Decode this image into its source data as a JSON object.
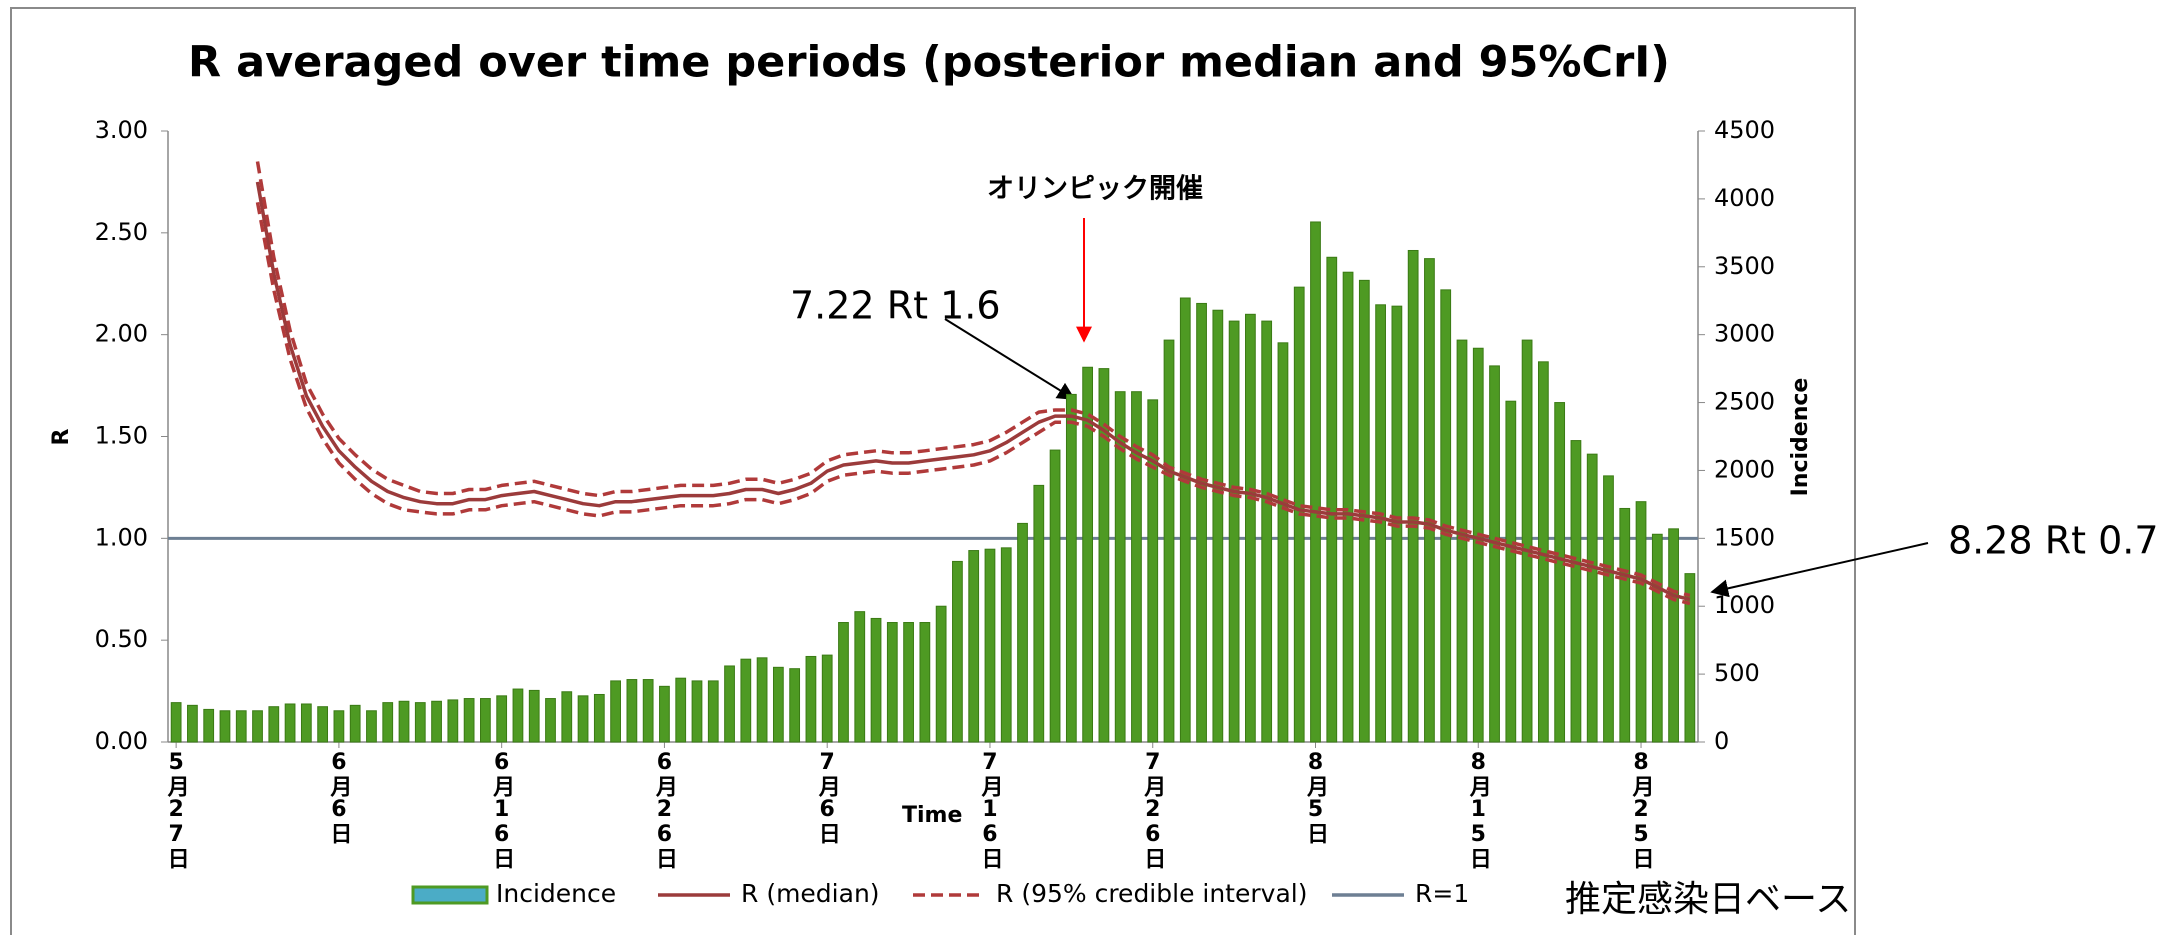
{
  "chart_data": {
    "type": "bar",
    "title": "R averaged over time periods (posterior median and 95%CrI)",
    "y_label": "R",
    "y2_label": "Incidence",
    "x_label": "Time",
    "corner_note": "推定感染日ベース",
    "annotations": [
      {
        "text": "オリンピック開催",
        "color": "#ff0000"
      },
      {
        "text": "7.22 Rt 1.6",
        "color": "#000000"
      },
      {
        "text": "8.28 Rt 0.7",
        "color": "#000000"
      }
    ],
    "categories": [
      "5月27日",
      null,
      null,
      null,
      null,
      null,
      null,
      null,
      null,
      null,
      "6月6日",
      null,
      null,
      null,
      null,
      null,
      null,
      null,
      null,
      null,
      "6月16日",
      null,
      null,
      null,
      null,
      null,
      null,
      null,
      null,
      null,
      "6月26日",
      null,
      null,
      null,
      null,
      null,
      null,
      null,
      null,
      null,
      "7月6日",
      null,
      null,
      null,
      null,
      null,
      null,
      null,
      null,
      null,
      "7月16日",
      null,
      null,
      null,
      null,
      null,
      null,
      null,
      null,
      null,
      "7月26日",
      null,
      null,
      null,
      null,
      null,
      null,
      null,
      null,
      null,
      "8月5日",
      null,
      null,
      null,
      null,
      null,
      null,
      null,
      null,
      null,
      "8月15日",
      null,
      null,
      null,
      null,
      null,
      null,
      null,
      null,
      null,
      "8月25日",
      null,
      null,
      null
    ],
    "ylim": [
      0,
      3
    ],
    "yticks": [
      {
        "value": 0,
        "label": "0.00"
      },
      {
        "value": 0.5,
        "label": "0.50"
      },
      {
        "value": 1,
        "label": "1.00"
      },
      {
        "value": 1.5,
        "label": "1.50"
      },
      {
        "value": 2,
        "label": "2.00"
      },
      {
        "value": 2.5,
        "label": "2.50"
      },
      {
        "value": 3,
        "label": "3.00"
      }
    ],
    "y2lim": [
      0,
      4500
    ],
    "y2ticks": [
      0,
      500,
      1000,
      1500,
      2000,
      2500,
      3000,
      3500,
      4000,
      4500
    ],
    "legend": "bottom",
    "series": [
      {
        "name": "Incidence",
        "type": "bar",
        "axis": "y2",
        "color": "#4e9a23",
        "legend_color": "#4bacc6",
        "values": [
          290,
          270,
          240,
          230,
          230,
          230,
          260,
          280,
          280,
          260,
          230,
          270,
          230,
          290,
          300,
          290,
          300,
          310,
          320,
          320,
          340,
          390,
          380,
          320,
          370,
          340,
          350,
          450,
          460,
          460,
          410,
          470,
          450,
          450,
          560,
          610,
          620,
          550,
          540,
          630,
          640,
          880,
          960,
          910,
          880,
          880,
          880,
          1000,
          1330,
          1410,
          1420,
          1430,
          1610,
          1890,
          2150,
          2560,
          2760,
          2750,
          2580,
          2580,
          2520,
          2960,
          3270,
          3230,
          3180,
          3100,
          3150,
          3100,
          2940,
          3350,
          3830,
          3570,
          3460,
          3400,
          3220,
          3210,
          3620,
          3560,
          3330,
          2960,
          2900,
          2770,
          2510,
          2960,
          2800,
          2500,
          2220,
          2120,
          1960,
          1720,
          1770,
          1530,
          1570,
          1240
        ]
      },
      {
        "name": "R (median)",
        "type": "line",
        "color": "#9b3b3b",
        "values": [
          null,
          null,
          null,
          null,
          null,
          2.75,
          2.3,
          1.95,
          1.7,
          1.55,
          1.43,
          1.35,
          1.28,
          1.23,
          1.2,
          1.18,
          1.17,
          1.17,
          1.19,
          1.19,
          1.21,
          1.22,
          1.23,
          1.21,
          1.19,
          1.17,
          1.16,
          1.18,
          1.18,
          1.19,
          1.2,
          1.21,
          1.21,
          1.21,
          1.22,
          1.24,
          1.24,
          1.22,
          1.24,
          1.27,
          1.33,
          1.36,
          1.37,
          1.38,
          1.37,
          1.37,
          1.38,
          1.39,
          1.4,
          1.41,
          1.43,
          1.47,
          1.52,
          1.57,
          1.6,
          1.6,
          1.58,
          1.53,
          1.47,
          1.42,
          1.38,
          1.33,
          1.3,
          1.27,
          1.25,
          1.23,
          1.22,
          1.2,
          1.17,
          1.14,
          1.13,
          1.12,
          1.12,
          1.11,
          1.1,
          1.08,
          1.08,
          1.07,
          1.04,
          1.02,
          1.0,
          0.98,
          0.96,
          0.94,
          0.92,
          0.9,
          0.88,
          0.86,
          0.84,
          0.82,
          0.8,
          0.76,
          0.72,
          0.7
        ]
      },
      {
        "name": "R (95% credible interval)",
        "type": "interval",
        "color": "#b03a3a",
        "upper": [
          null,
          null,
          null,
          null,
          null,
          2.85,
          2.38,
          2.02,
          1.76,
          1.61,
          1.49,
          1.41,
          1.34,
          1.29,
          1.26,
          1.23,
          1.22,
          1.22,
          1.24,
          1.24,
          1.26,
          1.27,
          1.28,
          1.26,
          1.24,
          1.22,
          1.21,
          1.23,
          1.23,
          1.24,
          1.25,
          1.26,
          1.26,
          1.26,
          1.27,
          1.29,
          1.29,
          1.27,
          1.29,
          1.32,
          1.38,
          1.41,
          1.42,
          1.43,
          1.42,
          1.42,
          1.43,
          1.44,
          1.45,
          1.46,
          1.48,
          1.52,
          1.57,
          1.62,
          1.63,
          1.63,
          1.61,
          1.56,
          1.5,
          1.45,
          1.41,
          1.35,
          1.32,
          1.29,
          1.27,
          1.25,
          1.24,
          1.22,
          1.19,
          1.16,
          1.15,
          1.14,
          1.14,
          1.13,
          1.12,
          1.1,
          1.1,
          1.09,
          1.06,
          1.04,
          1.02,
          1.0,
          0.98,
          0.96,
          0.94,
          0.92,
          0.9,
          0.88,
          0.86,
          0.84,
          0.82,
          0.78,
          0.74,
          0.72
        ],
        "lower": [
          null,
          null,
          null,
          null,
          null,
          2.65,
          2.22,
          1.88,
          1.64,
          1.49,
          1.37,
          1.29,
          1.22,
          1.17,
          1.14,
          1.13,
          1.12,
          1.12,
          1.14,
          1.14,
          1.16,
          1.17,
          1.18,
          1.16,
          1.14,
          1.12,
          1.11,
          1.13,
          1.13,
          1.14,
          1.15,
          1.16,
          1.16,
          1.16,
          1.17,
          1.19,
          1.19,
          1.17,
          1.19,
          1.22,
          1.28,
          1.31,
          1.32,
          1.33,
          1.32,
          1.32,
          1.33,
          1.34,
          1.35,
          1.36,
          1.38,
          1.42,
          1.47,
          1.52,
          1.57,
          1.57,
          1.55,
          1.5,
          1.44,
          1.39,
          1.35,
          1.31,
          1.28,
          1.25,
          1.23,
          1.21,
          1.2,
          1.18,
          1.15,
          1.12,
          1.11,
          1.1,
          1.1,
          1.09,
          1.08,
          1.06,
          1.06,
          1.05,
          1.02,
          1.0,
          0.98,
          0.96,
          0.94,
          0.92,
          0.9,
          0.88,
          0.86,
          0.84,
          0.82,
          0.8,
          0.78,
          0.74,
          0.7,
          0.68
        ]
      }
    ],
    "reference_line": {
      "name": "R=1",
      "value": 1,
      "color": "#6d7f93"
    }
  }
}
